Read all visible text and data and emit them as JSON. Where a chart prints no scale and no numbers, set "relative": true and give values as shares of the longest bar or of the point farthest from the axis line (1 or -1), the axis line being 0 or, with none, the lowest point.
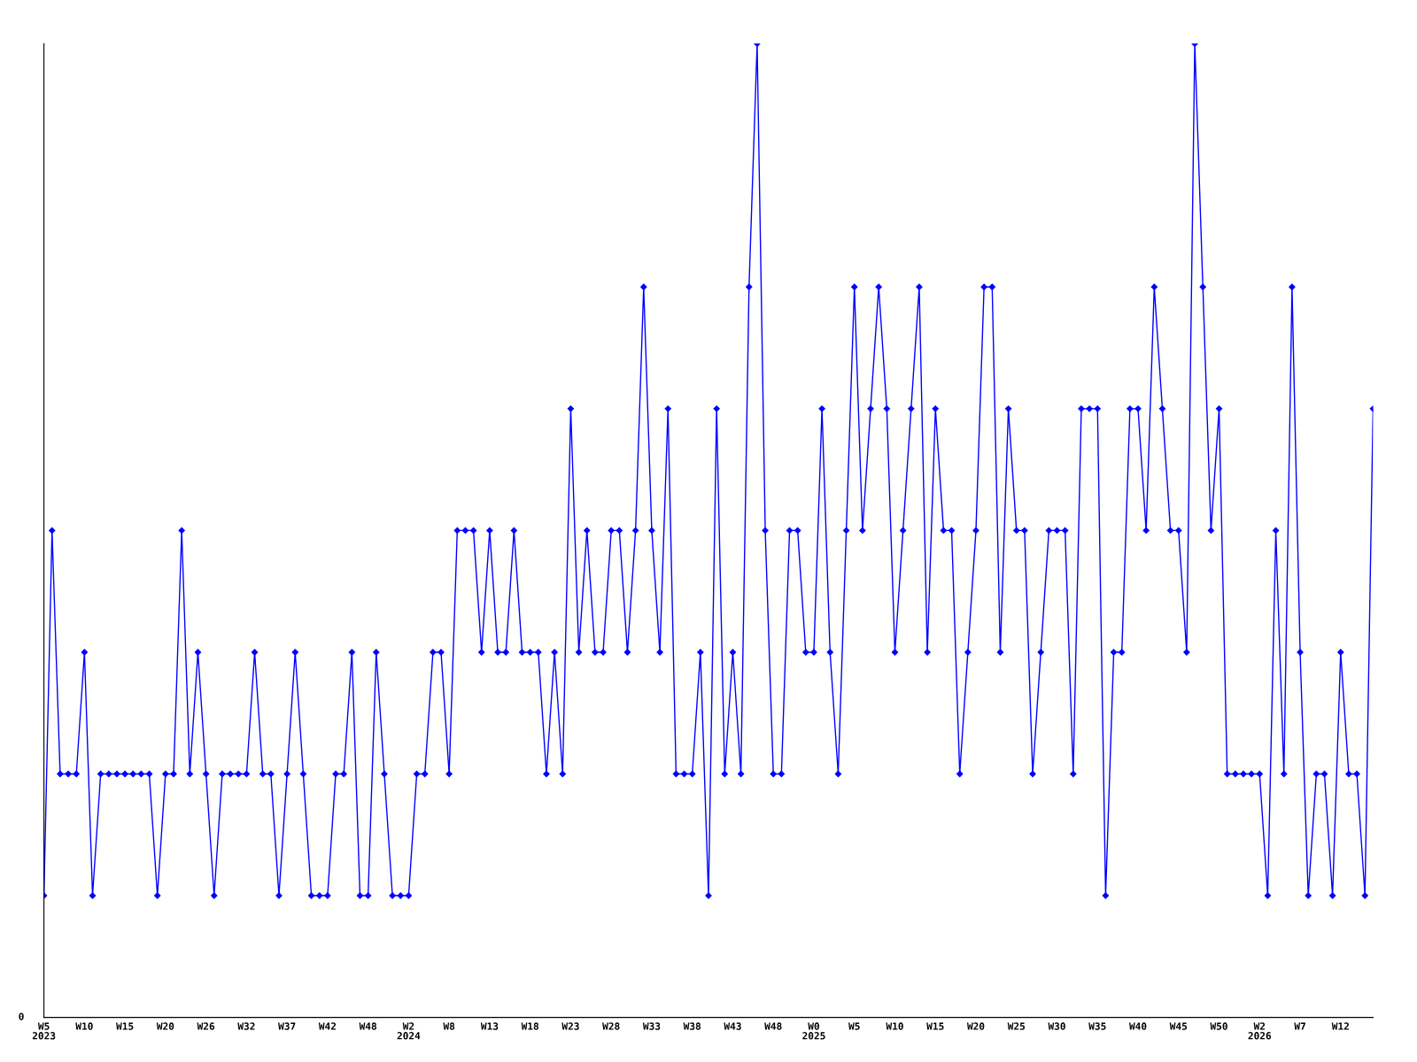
{
  "chart_data": {
    "type": "line",
    "relative": true,
    "marker": "diamond",
    "line_style": "solid",
    "grid": false,
    "legend": false,
    "annotations": [
      "0"
    ],
    "categories": [
      "W5\n2023",
      null,
      null,
      null,
      null,
      "W10",
      null,
      null,
      null,
      null,
      "W15",
      null,
      null,
      null,
      null,
      "W20",
      null,
      null,
      null,
      null,
      "W26",
      null,
      null,
      null,
      null,
      "W32",
      null,
      null,
      null,
      null,
      "W37",
      null,
      null,
      null,
      null,
      "W42",
      null,
      null,
      null,
      null,
      "W48",
      null,
      null,
      null,
      null,
      "W2\n2024",
      null,
      null,
      null,
      null,
      "W8",
      null,
      null,
      null,
      null,
      "W13",
      null,
      null,
      null,
      null,
      "W18",
      null,
      null,
      null,
      null,
      "W23",
      null,
      null,
      null,
      null,
      "W28",
      null,
      null,
      null,
      null,
      "W33",
      null,
      null,
      null,
      null,
      "W38",
      null,
      null,
      null,
      null,
      "W43",
      null,
      null,
      null,
      null,
      "W48",
      null,
      null,
      null,
      null,
      "W0\n2025",
      null,
      null,
      null,
      null,
      "W5",
      null,
      null,
      null,
      null,
      "W10",
      null,
      null,
      null,
      null,
      "W15",
      null,
      null,
      null,
      null,
      "W20",
      null,
      null,
      null,
      null,
      "W25",
      null,
      null,
      null,
      null,
      "W30",
      null,
      null,
      null,
      null,
      "W35",
      null,
      null,
      null,
      null,
      "W40",
      null,
      null,
      null,
      null,
      "W45",
      null,
      null,
      null,
      null,
      "W50",
      null,
      null,
      null,
      null,
      "W2\n2026",
      null,
      null,
      null,
      null,
      "W7",
      null,
      null,
      null,
      null,
      "W12",
      null,
      null,
      null,
      null
    ],
    "series": [
      {
        "color": "#0000ff",
        "values": [
          0.125,
          0.5,
          0.25,
          0.25,
          0.25,
          0.375,
          0.125,
          0.25,
          0.25,
          0.25,
          0.25,
          0.25,
          0.25,
          0.25,
          0.125,
          0.25,
          0.25,
          0.5,
          0.25,
          0.375,
          0.25,
          0.125,
          0.25,
          0.25,
          0.25,
          0.25,
          0.375,
          0.25,
          0.25,
          0.125,
          0.25,
          0.375,
          0.25,
          0.125,
          0.125,
          0.125,
          0.25,
          0.25,
          0.375,
          0.125,
          0.125,
          0.375,
          0.25,
          0.125,
          0.125,
          0.125,
          0.25,
          0.25,
          0.375,
          0.375,
          0.25,
          0.5,
          0.5,
          0.5,
          0.375,
          0.5,
          0.375,
          0.375,
          0.5,
          0.375,
          0.375,
          0.375,
          0.25,
          0.375,
          0.25,
          0.625,
          0.375,
          0.5,
          0.375,
          0.375,
          0.5,
          0.5,
          0.375,
          0.5,
          0.75,
          0.5,
          0.375,
          0.625,
          0.25,
          0.25,
          0.25,
          0.375,
          0.125,
          0.625,
          0.25,
          0.375,
          0.25,
          0.75,
          1,
          0.5,
          0.25,
          0.25,
          0.5,
          0.5,
          0.375,
          0.375,
          0.625,
          0.375,
          0.25,
          0.5,
          0.75,
          0.5,
          0.625,
          0.75,
          0.625,
          0.375,
          0.5,
          0.625,
          0.75,
          0.375,
          0.625,
          0.5,
          0.5,
          0.25,
          0.375,
          0.5,
          0.75,
          0.75,
          0.375,
          0.625,
          0.5,
          0.5,
          0.25,
          0.375,
          0.5,
          0.5,
          0.5,
          0.25,
          0.625,
          0.625,
          0.625,
          0.125,
          0.375,
          0.375,
          0.625,
          0.625,
          0.5,
          0.75,
          0.625,
          0.5,
          0.5,
          0.375,
          1,
          0.75,
          0.5,
          0.625,
          0.25,
          0.25,
          0.25,
          0.25,
          0.25,
          0.125,
          0.5,
          0.25,
          0.75,
          0.375,
          0.125,
          0.25,
          0.25,
          0.125,
          0.375,
          0.25,
          0.25,
          0.125,
          0.625
        ]
      }
    ]
  }
}
